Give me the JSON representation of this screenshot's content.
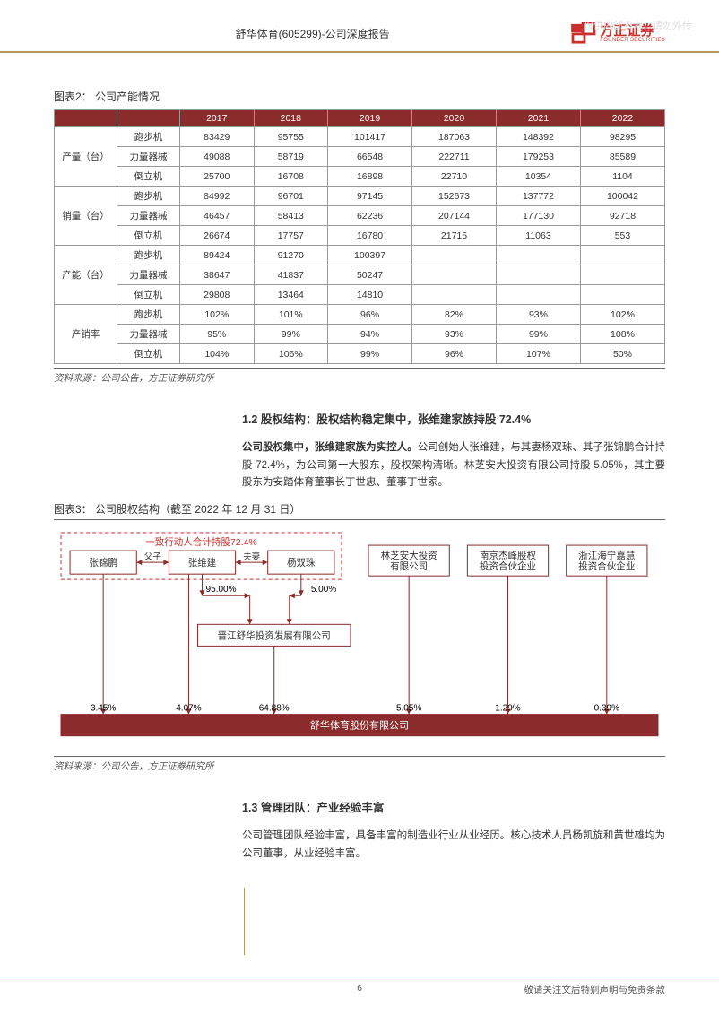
{
  "watermark": "仅供内部参考，请勿外传",
  "header": {
    "title": "舒华体育(605299)-公司深度报告",
    "logo_cn": "方正证券",
    "logo_en": "FOUNDER SECURITIES",
    "logo_color": "#c9302c"
  },
  "table2": {
    "caption": "图表2：  公司产能情况",
    "header_bg": "#8b2b2b",
    "header_color": "#ffffff",
    "years": [
      "2017",
      "2018",
      "2019",
      "2020",
      "2021",
      "2022"
    ],
    "groups": [
      {
        "label": "产量（台）",
        "rows": [
          {
            "k": "跑步机",
            "v": [
              "83429",
              "95755",
              "101417",
              "187063",
              "148392",
              "98295"
            ]
          },
          {
            "k": "力量器械",
            "v": [
              "49088",
              "58719",
              "66548",
              "222711",
              "179253",
              "85589"
            ]
          },
          {
            "k": "倒立机",
            "v": [
              "25700",
              "16708",
              "16898",
              "22710",
              "10354",
              "1104"
            ]
          }
        ]
      },
      {
        "label": "销量（台）",
        "rows": [
          {
            "k": "跑步机",
            "v": [
              "84992",
              "96701",
              "97145",
              "152673",
              "137772",
              "100042"
            ]
          },
          {
            "k": "力量器械",
            "v": [
              "46457",
              "58413",
              "62236",
              "207144",
              "177130",
              "92718"
            ]
          },
          {
            "k": "倒立机",
            "v": [
              "26674",
              "17757",
              "16780",
              "21715",
              "11063",
              "553"
            ]
          }
        ]
      },
      {
        "label": "产能（台）",
        "rows": [
          {
            "k": "跑步机",
            "v": [
              "89424",
              "91270",
              "100397",
              "",
              "",
              ""
            ]
          },
          {
            "k": "力量器械",
            "v": [
              "38647",
              "41837",
              "50247",
              "",
              "",
              ""
            ]
          },
          {
            "k": "倒立机",
            "v": [
              "29808",
              "13464",
              "14810",
              "",
              "",
              ""
            ]
          }
        ]
      },
      {
        "label": "产销率",
        "rows": [
          {
            "k": "跑步机",
            "v": [
              "102%",
              "101%",
              "96%",
              "82%",
              "93%",
              "102%"
            ]
          },
          {
            "k": "力量器械",
            "v": [
              "95%",
              "99%",
              "94%",
              "93%",
              "99%",
              "108%"
            ]
          },
          {
            "k": "倒立机",
            "v": [
              "104%",
              "106%",
              "99%",
              "96%",
              "107%",
              "50%"
            ]
          }
        ]
      }
    ],
    "source": "资料来源：公司公告，方正证券研究所"
  },
  "section12": {
    "title": "1.2 股权结构：股权结构稳定集中，张维建家族持股 72.4%",
    "para_bold": "公司股权集中，张维建家族为实控人。",
    "para_rest": "公司创始人张维建，与其妻杨双珠、其子张锦鹏合计持股 72.4%，为公司第一大股东，股权架构清晰。林芝安大投资有限公司持股 5.05%，其主要股东为安踏体育董事长丁世忠、董事丁世家。"
  },
  "figure3": {
    "caption": "图表3：  公司股权结构（截至 2022 年 12 月 31 日）",
    "dashed_label": "一致行动人合计持股72.4%",
    "dashed_color": "#c9302c",
    "rel_fz": "父子",
    "rel_fq": "夫妻",
    "nodes": {
      "zjp": "张锦鹏",
      "zwj": "张维建",
      "ysz": "杨双珠",
      "lz": "林芝安大投资\n有限公司",
      "nj": "南京杰峰股权\n投资合伙企业",
      "zj": "浙江海宁嘉慧\n投资合伙企业",
      "jjsh": "晋江舒华投资发展有限公司",
      "target": "舒华体育股份有限公司"
    },
    "pct": {
      "p95": "95.00%",
      "p5": "5.00%",
      "p345": "3.45%",
      "p407": "4.07%",
      "p6488": "64.88%",
      "p505": "5.05%",
      "p129": "1.29%",
      "p039": "0.39%"
    },
    "box_border": "#8b2b2b",
    "target_bg": "#8b2b2b",
    "target_color": "#ffffff",
    "source": "资料来源：公司公告，方正证券研究所"
  },
  "section13": {
    "title": "1.3 管理团队：产业经验丰富",
    "para": "公司管理团队经验丰富，具备丰富的制造业行业从业经历。核心技术人员杨凯旋和黄世雄均为公司董事，从业经验丰富。"
  },
  "footer": {
    "page": "6",
    "disclaimer": "敬请关注文后特别声明与免责条款"
  }
}
